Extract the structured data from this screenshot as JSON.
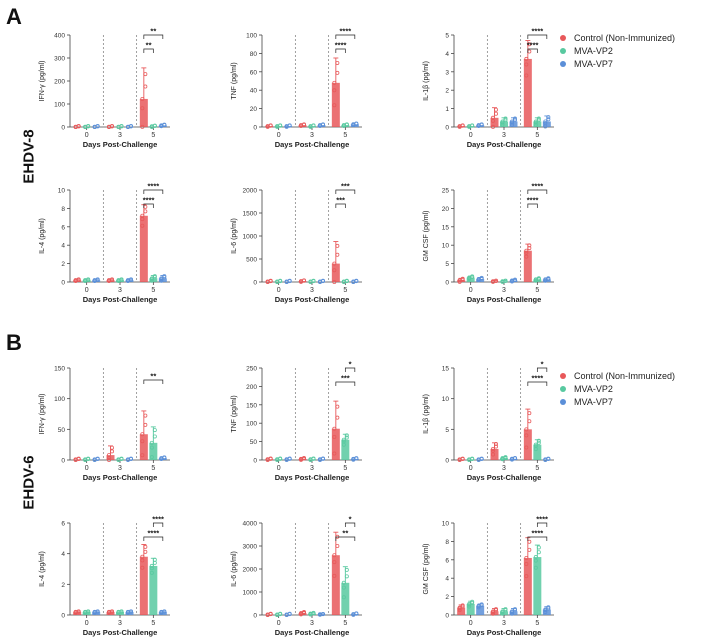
{
  "panels": [
    {
      "letter": "A",
      "row_label": "EHDV-8"
    },
    {
      "letter": "B",
      "row_label": "EHDV-6"
    }
  ],
  "legend": [
    {
      "name": "Control (Non-Immunized)",
      "color": "#e8585a"
    },
    {
      "name": "MVA-VP2",
      "color": "#58c9a0"
    },
    {
      "name": "MVA-VP7",
      "color": "#5b8fd8"
    }
  ],
  "chart_data": [
    {
      "type": "bar",
      "panel": "A",
      "title": "",
      "ylabel": "IFN-γ (pg/ml)",
      "xlabel": "Days Post-Challenge",
      "categories": [
        "0",
        "3",
        "5"
      ],
      "yticks": [
        "0",
        "100",
        "200",
        "300",
        "400"
      ],
      "ylim": [
        0,
        400
      ],
      "series": [
        {
          "name": "Control (Non-Immunized)",
          "values": [
            1,
            1,
            122
          ],
          "err": [
            0,
            0,
            135
          ]
        },
        {
          "name": "MVA-VP2",
          "values": [
            1,
            1,
            3
          ],
          "err": [
            0,
            0,
            0
          ]
        },
        {
          "name": "MVA-VP7",
          "values": [
            1,
            1,
            7
          ],
          "err": [
            0,
            0,
            0
          ]
        }
      ],
      "sig": [
        {
          "from": 0,
          "to": 1,
          "label": "**"
        },
        {
          "from": 0,
          "to": 2,
          "label": "**"
        }
      ]
    },
    {
      "type": "bar",
      "panel": "A",
      "title": "",
      "ylabel": "TNF (pg/ml)",
      "xlabel": "Days Post-Challenge",
      "categories": [
        "0",
        "3",
        "5"
      ],
      "yticks": [
        "0",
        "20",
        "40",
        "60",
        "80",
        "100"
      ],
      "ylim": [
        0,
        100
      ],
      "series": [
        {
          "name": "Control (Non-Immunized)",
          "values": [
            1,
            2,
            48
          ],
          "err": [
            0,
            0,
            27
          ]
        },
        {
          "name": "MVA-VP2",
          "values": [
            1,
            1,
            2
          ],
          "err": [
            0,
            0,
            0
          ]
        },
        {
          "name": "MVA-VP7",
          "values": [
            1,
            2,
            3
          ],
          "err": [
            0,
            0,
            0
          ]
        }
      ],
      "sig": [
        {
          "from": 0,
          "to": 1,
          "label": "****"
        },
        {
          "from": 0,
          "to": 2,
          "label": "****"
        }
      ]
    },
    {
      "type": "bar",
      "panel": "A",
      "title": "",
      "ylabel": "IL-1β (pg/ml)",
      "xlabel": "Days Post-Challenge",
      "categories": [
        "0",
        "3",
        "5"
      ],
      "yticks": [
        "0",
        "1",
        "2",
        "3",
        "4",
        "5"
      ],
      "ylim": [
        0,
        5
      ],
      "series": [
        {
          "name": "Control (Non-Immunized)",
          "values": [
            0.05,
            0.5,
            3.7
          ],
          "err": [
            0,
            0.55,
            1.0
          ]
        },
        {
          "name": "MVA-VP2",
          "values": [
            0.05,
            0.3,
            0.3
          ],
          "err": [
            0,
            0.2,
            0.2
          ]
        },
        {
          "name": "MVA-VP7",
          "values": [
            0.1,
            0.3,
            0.3
          ],
          "err": [
            0,
            0.2,
            0.3
          ]
        }
      ],
      "sig": [
        {
          "from": 0,
          "to": 1,
          "label": "****"
        },
        {
          "from": 0,
          "to": 2,
          "label": "****"
        }
      ]
    },
    {
      "type": "bar",
      "panel": "A",
      "title": "",
      "ylabel": "IL-4 (pg/ml)",
      "xlabel": "Days Post-Challenge",
      "categories": [
        "0",
        "3",
        "5"
      ],
      "yticks": [
        "0",
        "2",
        "4",
        "6",
        "8",
        "10"
      ],
      "ylim": [
        0,
        10
      ],
      "series": [
        {
          "name": "Control (Non-Immunized)",
          "values": [
            0.2,
            0.2,
            7.2
          ],
          "err": [
            0.1,
            0.1,
            1.2
          ]
        },
        {
          "name": "MVA-VP2",
          "values": [
            0.2,
            0.2,
            0.4
          ],
          "err": [
            0.1,
            0.1,
            0.3
          ]
        },
        {
          "name": "MVA-VP7",
          "values": [
            0.2,
            0.2,
            0.4
          ],
          "err": [
            0.1,
            0.1,
            0.3
          ]
        }
      ],
      "sig": [
        {
          "from": 0,
          "to": 1,
          "label": "****"
        },
        {
          "from": 0,
          "to": 2,
          "label": "****"
        }
      ]
    },
    {
      "type": "bar",
      "panel": "A",
      "title": "",
      "ylabel": "IL-6 (pg/ml)",
      "xlabel": "Days Post-Challenge",
      "categories": [
        "0",
        "3",
        "5"
      ],
      "yticks": [
        "0",
        "500",
        "1000",
        "1500",
        "2000"
      ],
      "ylim": [
        0,
        2000
      ],
      "series": [
        {
          "name": "Control (Non-Immunized)",
          "values": [
            10,
            20,
            400
          ],
          "err": [
            0,
            0,
            480
          ]
        },
        {
          "name": "MVA-VP2",
          "values": [
            10,
            10,
            10
          ],
          "err": [
            0,
            0,
            0
          ]
        },
        {
          "name": "MVA-VP7",
          "values": [
            10,
            10,
            10
          ],
          "err": [
            0,
            0,
            0
          ]
        }
      ],
      "sig": [
        {
          "from": 0,
          "to": 1,
          "label": "***"
        },
        {
          "from": 0,
          "to": 2,
          "label": "***"
        }
      ]
    },
    {
      "type": "bar",
      "panel": "A",
      "title": "",
      "ylabel": "GM CSF (pg/ml)",
      "xlabel": "Days Post-Challenge",
      "categories": [
        "0",
        "3",
        "5"
      ],
      "yticks": [
        "0",
        "5",
        "10",
        "15",
        "20",
        "25"
      ],
      "ylim": [
        0,
        25
      ],
      "series": [
        {
          "name": "Control (Non-Immunized)",
          "values": [
            0.5,
            0.2,
            8.5
          ],
          "err": [
            0.5,
            0.2,
            1.8
          ]
        },
        {
          "name": "MVA-VP2",
          "values": [
            1.2,
            0.2,
            0.7
          ],
          "err": [
            0.4,
            0.2,
            0.4
          ]
        },
        {
          "name": "MVA-VP7",
          "values": [
            0.8,
            0.4,
            0.7
          ],
          "err": [
            0.4,
            0.3,
            0.4
          ]
        }
      ],
      "sig": [
        {
          "from": 0,
          "to": 1,
          "label": "****"
        },
        {
          "from": 0,
          "to": 2,
          "label": "****"
        }
      ]
    },
    {
      "type": "bar",
      "panel": "B",
      "title": "",
      "ylabel": "IFN-γ (pg/ml)",
      "xlabel": "Days Post-Challenge",
      "categories": [
        "0",
        "3",
        "5"
      ],
      "yticks": [
        "0",
        "50",
        "100",
        "150"
      ],
      "ylim": [
        0,
        150
      ],
      "series": [
        {
          "name": "Control (Non-Immunized)",
          "values": [
            1,
            8,
            42
          ],
          "err": [
            0,
            15,
            38
          ]
        },
        {
          "name": "MVA-VP2",
          "values": [
            1,
            1,
            28
          ],
          "err": [
            0,
            0,
            26
          ]
        },
        {
          "name": "MVA-VP7",
          "values": [
            1,
            1,
            3
          ],
          "err": [
            0,
            0,
            0
          ]
        }
      ],
      "sig": [
        {
          "from": 0,
          "to": 2,
          "label": "**"
        }
      ]
    },
    {
      "type": "bar",
      "panel": "B",
      "title": "",
      "ylabel": "TNF (pg/ml)",
      "xlabel": "Days Post-Challenge",
      "categories": [
        "0",
        "3",
        "5"
      ],
      "yticks": [
        "0",
        "50",
        "100",
        "150",
        "200",
        "250"
      ],
      "ylim": [
        0,
        250
      ],
      "series": [
        {
          "name": "Control (Non-Immunized)",
          "values": [
            2,
            3,
            85
          ],
          "err": [
            0,
            3,
            75
          ]
        },
        {
          "name": "MVA-VP2",
          "values": [
            2,
            2,
            55
          ],
          "err": [
            0,
            0,
            15
          ]
        },
        {
          "name": "MVA-VP7",
          "values": [
            2,
            2,
            3
          ],
          "err": [
            0,
            0,
            0
          ]
        }
      ],
      "sig": [
        {
          "from": 0,
          "to": 2,
          "label": "***"
        },
        {
          "from": 1,
          "to": 2,
          "label": "*"
        }
      ]
    },
    {
      "type": "bar",
      "panel": "B",
      "title": "",
      "ylabel": "IL-1β (pg/ml)",
      "xlabel": "Days Post-Challenge",
      "categories": [
        "0",
        "3",
        "5"
      ],
      "yticks": [
        "0",
        "5",
        "10",
        "15"
      ],
      "ylim": [
        0,
        15
      ],
      "series": [
        {
          "name": "Control (Non-Immunized)",
          "values": [
            0.1,
            1.8,
            5.0
          ],
          "err": [
            0,
            1.0,
            3.3
          ]
        },
        {
          "name": "MVA-VP2",
          "values": [
            0.1,
            0.3,
            2.5
          ],
          "err": [
            0,
            0.2,
            0.8
          ]
        },
        {
          "name": "MVA-VP7",
          "values": [
            0.1,
            0.2,
            0.1
          ],
          "err": [
            0,
            0,
            0
          ]
        }
      ],
      "sig": [
        {
          "from": 0,
          "to": 2,
          "label": "****"
        },
        {
          "from": 1,
          "to": 2,
          "label": "*"
        }
      ]
    },
    {
      "type": "bar",
      "panel": "B",
      "title": "",
      "ylabel": "IL-4 (pg/ml)",
      "xlabel": "Days Post-Challenge",
      "categories": [
        "0",
        "3",
        "5"
      ],
      "yticks": [
        "0",
        "2",
        "4",
        "6"
      ],
      "ylim": [
        0,
        6
      ],
      "series": [
        {
          "name": "Control (Non-Immunized)",
          "values": [
            0.2,
            0.2,
            3.8
          ],
          "err": [
            0.05,
            0.05,
            0.8
          ]
        },
        {
          "name": "MVA-VP2",
          "values": [
            0.2,
            0.2,
            3.2
          ],
          "err": [
            0.05,
            0.05,
            0.5
          ]
        },
        {
          "name": "MVA-VP7",
          "values": [
            0.2,
            0.2,
            0.2
          ],
          "err": [
            0.05,
            0.05,
            0.05
          ]
        }
      ],
      "sig": [
        {
          "from": 0,
          "to": 2,
          "label": "****"
        },
        {
          "from": 1,
          "to": 2,
          "label": "****"
        }
      ]
    },
    {
      "type": "bar",
      "panel": "B",
      "title": "",
      "ylabel": "IL-6 (pg/ml)",
      "xlabel": "Days Post-Challenge",
      "categories": [
        "0",
        "3",
        "5"
      ],
      "yticks": [
        "0",
        "1000",
        "2000",
        "3000",
        "4000"
      ],
      "ylim": [
        0,
        4000
      ],
      "series": [
        {
          "name": "Control (Non-Immunized)",
          "values": [
            20,
            80,
            2600
          ],
          "err": [
            0,
            60,
            1000
          ]
        },
        {
          "name": "MVA-VP2",
          "values": [
            20,
            60,
            1400
          ],
          "err": [
            0,
            40,
            700
          ]
        },
        {
          "name": "MVA-VP7",
          "values": [
            20,
            30,
            40
          ],
          "err": [
            0,
            20,
            0
          ]
        }
      ],
      "sig": [
        {
          "from": 0,
          "to": 2,
          "label": "**"
        },
        {
          "from": 1,
          "to": 2,
          "label": "*"
        }
      ]
    },
    {
      "type": "bar",
      "panel": "B",
      "title": "",
      "ylabel": "GM CSF (pg/ml)",
      "xlabel": "Days Post-Challenge",
      "categories": [
        "0",
        "3",
        "5"
      ],
      "yticks": [
        "0",
        "2",
        "4",
        "6",
        "8",
        "10"
      ],
      "ylim": [
        0,
        10
      ],
      "series": [
        {
          "name": "Control (Non-Immunized)",
          "values": [
            0.8,
            0.4,
            6.2
          ],
          "err": [
            0.3,
            0.3,
            2.2
          ]
        },
        {
          "name": "MVA-VP2",
          "values": [
            1.2,
            0.4,
            6.3
          ],
          "err": [
            0.3,
            0.3,
            1.3
          ]
        },
        {
          "name": "MVA-VP7",
          "values": [
            1.0,
            0.4,
            0.6
          ],
          "err": [
            0.2,
            0.3,
            0.3
          ]
        }
      ],
      "sig": [
        {
          "from": 0,
          "to": 2,
          "label": "****"
        },
        {
          "from": 1,
          "to": 2,
          "label": "****"
        }
      ]
    }
  ]
}
